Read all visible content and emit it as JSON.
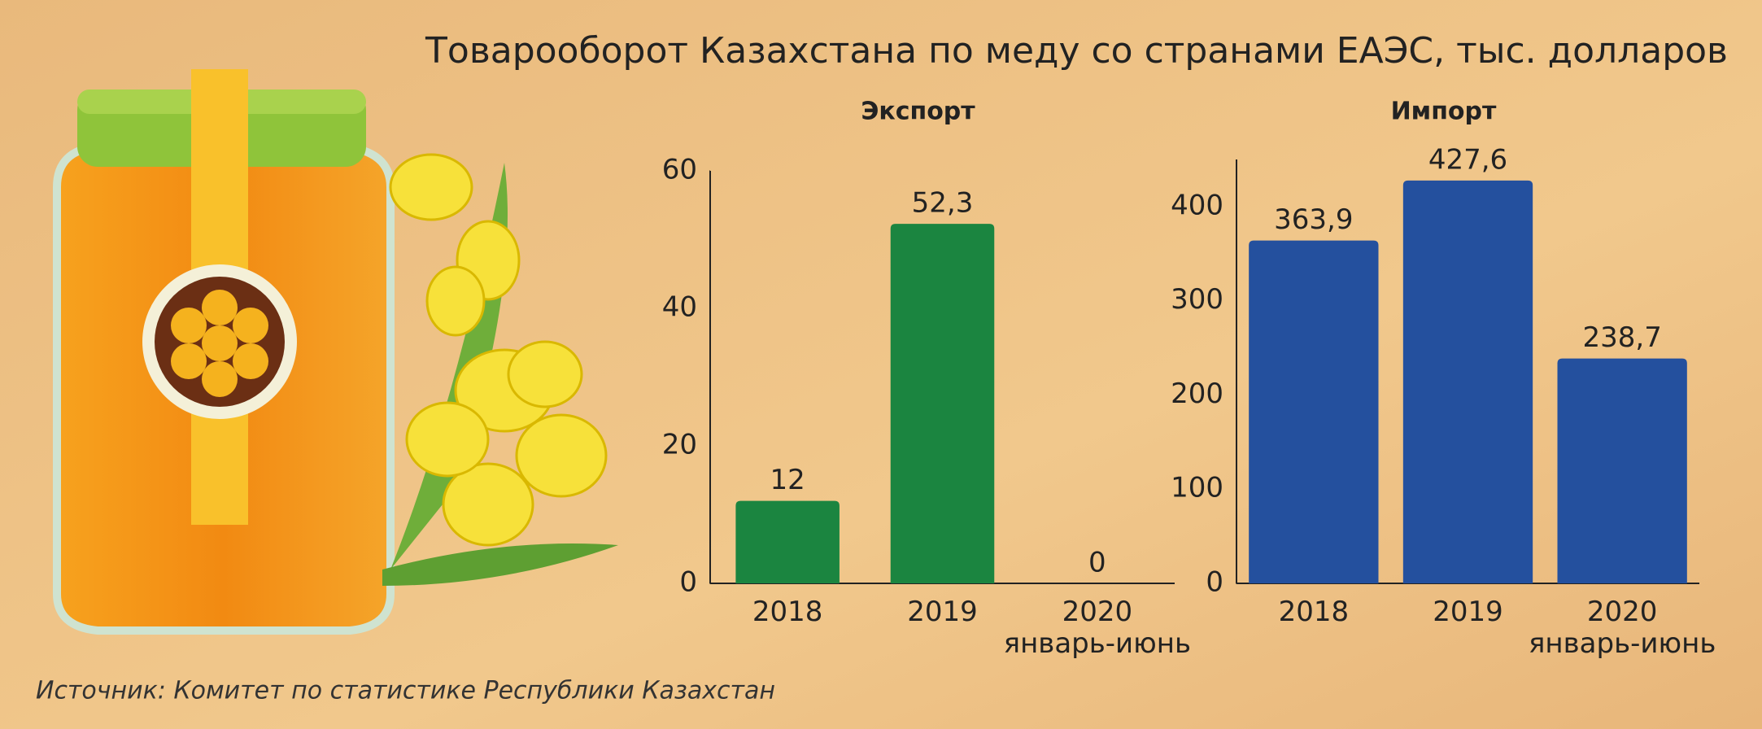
{
  "title": "Товарооборот Казахстана по меду со странами ЕАЭС, тыс. долларов",
  "source": "Источник: Комитет по статистике Республики Казахстан",
  "chart_data": [
    {
      "type": "bar",
      "title": "Экспорт",
      "categories": [
        "2018",
        "2019",
        "2020\nянварь-июнь"
      ],
      "values": [
        12,
        52.3,
        0
      ],
      "value_labels": [
        "12",
        "52,3",
        "0"
      ],
      "color": "#1b8540",
      "ylim": [
        0,
        60
      ],
      "yticks": [
        0,
        20,
        40,
        60
      ]
    },
    {
      "type": "bar",
      "title": "Импорт",
      "categories": [
        "2018",
        "2019",
        "2020\nянварь-июнь"
      ],
      "values": [
        363.9,
        427.6,
        238.7
      ],
      "value_labels": [
        "363,9",
        "427,6",
        "238,7"
      ],
      "color": "#24509e",
      "ylim": [
        0,
        450
      ],
      "yticks": [
        0,
        100,
        200,
        300,
        400
      ]
    }
  ]
}
